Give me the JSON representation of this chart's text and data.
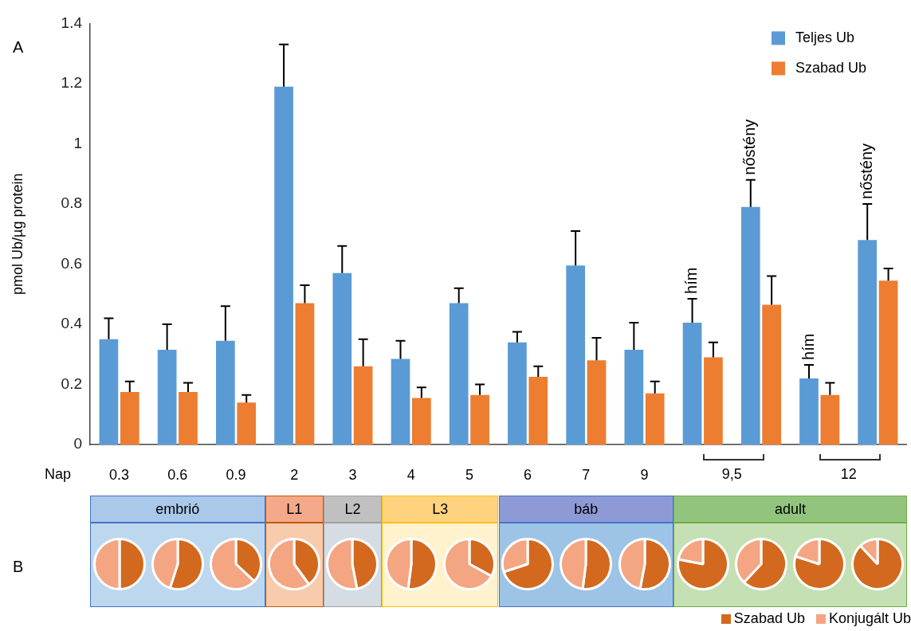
{
  "chart_data": [
    {
      "type": "bar",
      "ylabel": "pmol Ub/µg protein",
      "categories": [
        "0.3",
        "0.6",
        "0.9",
        "2",
        "3",
        "4",
        "5",
        "6",
        "7",
        "9",
        "hím",
        "nőstény",
        "hím",
        "nőstény"
      ],
      "series": [
        {
          "name": "Teljes Ub",
          "color": "#5b9bd5",
          "values": [
            0.35,
            0.315,
            0.345,
            1.19,
            0.57,
            0.285,
            0.47,
            0.34,
            0.595,
            0.315,
            0.405,
            0.79,
            0.22,
            0.68
          ],
          "errors": [
            [
              0.35,
              0.42
            ],
            [
              0.315,
              0.4
            ],
            [
              0.345,
              0.46
            ],
            [
              1.19,
              1.33
            ],
            [
              0.57,
              0.66
            ],
            [
              0.285,
              0.345
            ],
            [
              0.47,
              0.52
            ],
            [
              0.34,
              0.375
            ],
            [
              0.595,
              0.71
            ],
            [
              0.315,
              0.405
            ],
            [
              0.405,
              0.485
            ],
            [
              0.79,
              0.88
            ],
            [
              0.22,
              0.265
            ],
            [
              0.68,
              0.8
            ]
          ]
        },
        {
          "name": "Szabad Ub",
          "color": "#ed7d31",
          "values": [
            0.175,
            0.175,
            0.14,
            0.47,
            0.26,
            0.155,
            0.165,
            0.225,
            0.28,
            0.17,
            0.29,
            0.465,
            0.165,
            0.545
          ],
          "errors": [
            [
              0.175,
              0.21
            ],
            [
              0.175,
              0.205
            ],
            [
              0.14,
              0.165
            ],
            [
              0.47,
              0.53
            ],
            [
              0.26,
              0.35
            ],
            [
              0.155,
              0.19
            ],
            [
              0.165,
              0.2
            ],
            [
              0.225,
              0.26
            ],
            [
              0.28,
              0.355
            ],
            [
              0.17,
              0.21
            ],
            [
              0.29,
              0.34
            ],
            [
              0.465,
              0.56
            ],
            [
              0.165,
              0.205
            ],
            [
              0.545,
              0.585
            ]
          ]
        }
      ],
      "ylim": [
        0,
        1.4
      ],
      "yticks": [
        0,
        0.2,
        0.4,
        0.6,
        0.8,
        1,
        1.2,
        1.4
      ],
      "legend": "top right",
      "annotations": [
        "A",
        "B",
        "Nap",
        "9,5",
        "12",
        "embrió",
        "L1",
        "L2",
        "L3",
        "báb",
        "adult"
      ]
    },
    {
      "type": "pie",
      "categories": [
        "Szabad Ub",
        "Konjugált Ub"
      ],
      "values": [
        50,
        50
      ],
      "colors": [
        "#d2691e",
        "#f4a582"
      ],
      "legend": "bottom right"
    },
    {
      "type": "pie",
      "categories": [
        null,
        null
      ],
      "values": [
        55,
        45
      ],
      "colors": [
        "#d2691e",
        "#f4a582"
      ]
    },
    {
      "type": "pie",
      "categories": [
        null,
        null
      ],
      "values": [
        37,
        63
      ],
      "colors": [
        "#d2691e",
        "#f4a582"
      ]
    },
    {
      "type": "pie",
      "categories": [
        null,
        null
      ],
      "values": [
        40,
        60
      ],
      "colors": [
        "#d2691e",
        "#f4a582"
      ]
    },
    {
      "type": "pie",
      "categories": [
        null,
        null
      ],
      "values": [
        47,
        53
      ],
      "colors": [
        "#d2691e",
        "#f4a582"
      ]
    },
    {
      "type": "pie",
      "categories": [
        null,
        null
      ],
      "values": [
        52,
        48
      ],
      "colors": [
        "#d2691e",
        "#f4a582"
      ]
    },
    {
      "type": "pie",
      "categories": [
        null,
        null
      ],
      "values": [
        33,
        67
      ],
      "colors": [
        "#d2691e",
        "#f4a582"
      ]
    },
    {
      "type": "pie",
      "categories": [
        null,
        null
      ],
      "values": [
        70,
        30
      ],
      "colors": [
        "#d2691e",
        "#f4a582"
      ]
    },
    {
      "type": "pie",
      "categories": [
        null,
        null
      ],
      "values": [
        52,
        48
      ],
      "colors": [
        "#d2691e",
        "#f4a582"
      ]
    },
    {
      "type": "pie",
      "categories": [
        null,
        null
      ],
      "values": [
        53,
        47
      ],
      "colors": [
        "#d2691e",
        "#f4a582"
      ]
    },
    {
      "type": "pie",
      "categories": [
        null,
        null
      ],
      "values": [
        78,
        22
      ],
      "colors": [
        "#d2691e",
        "#f4a582"
      ]
    },
    {
      "type": "pie",
      "categories": [
        null,
        null
      ],
      "values": [
        62,
        38
      ],
      "colors": [
        "#d2691e",
        "#f4a582"
      ]
    },
    {
      "type": "pie",
      "categories": [
        null,
        null
      ],
      "values": [
        80,
        20
      ],
      "colors": [
        "#d2691e",
        "#f4a582"
      ]
    },
    {
      "type": "pie",
      "categories": [
        null,
        null
      ],
      "values": [
        88,
        12
      ],
      "colors": [
        "#d2691e",
        "#f4a582"
      ]
    }
  ]
}
